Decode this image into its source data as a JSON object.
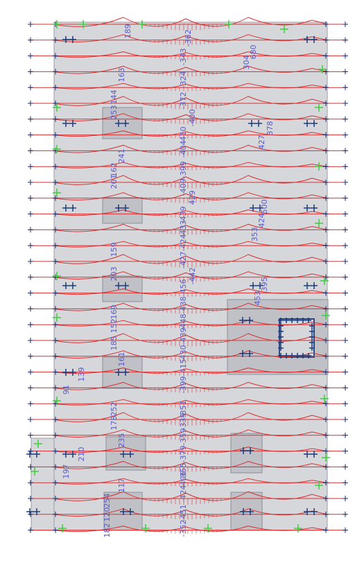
{
  "labels": [
    "189",
    "-362",
    "680",
    "304",
    "-343",
    "163",
    "-324",
    "144",
    "-372",
    "253",
    "-400",
    "-410",
    "-404",
    "427",
    "378",
    "241",
    "162",
    "-399",
    "201",
    "-409",
    "429",
    "-439",
    "-433",
    "500",
    "424",
    "353",
    "-424",
    "159",
    "-427",
    "203",
    "-442",
    "-456",
    "395",
    "453",
    "169",
    "-438",
    "-448",
    "152",
    "-439",
    "185",
    "161",
    "-430",
    "-415",
    "-399",
    "139",
    "91",
    "252",
    "-351",
    "178",
    "-339",
    "235",
    "-359",
    "210",
    "-379",
    "-355",
    "197",
    "117",
    "-406",
    "-424",
    "254",
    "120",
    "-451",
    "182",
    "-352"
  ]
}
